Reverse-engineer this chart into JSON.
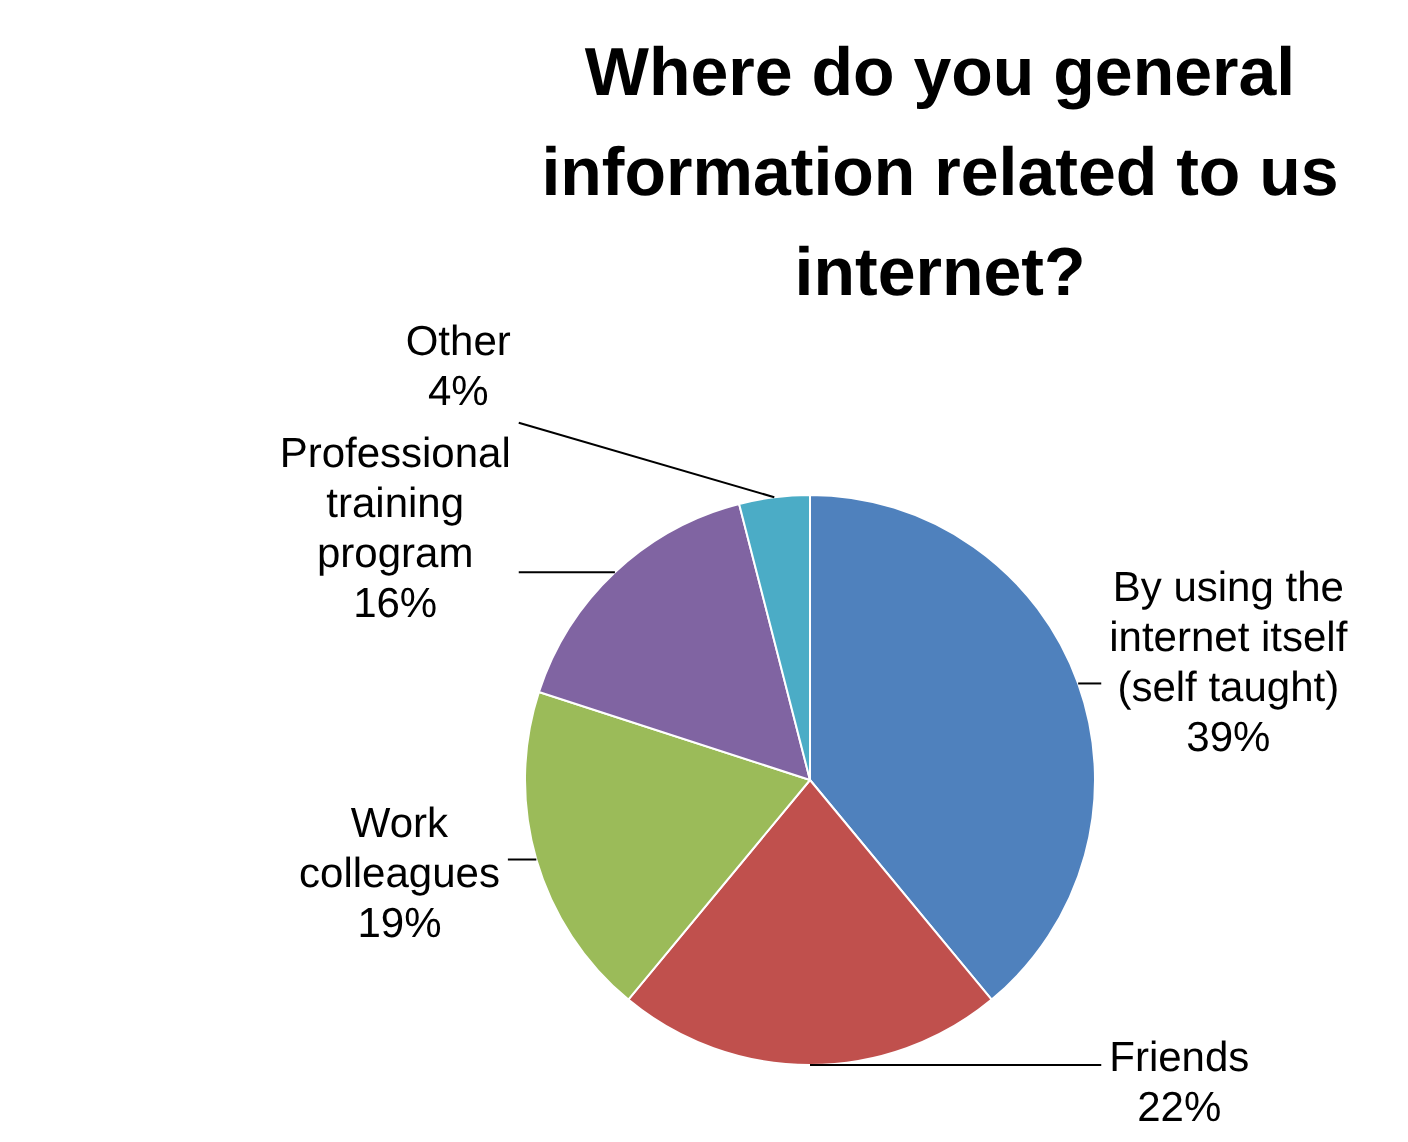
{
  "chart_data": {
    "type": "pie",
    "title": "Where do you general\ninformation related to us\ninternet?",
    "categories": [
      "By using the internet itself (self taught)",
      "Friends",
      "Work colleagues",
      "Professional training program",
      "Other"
    ],
    "values": [
      39,
      22,
      19,
      16,
      4
    ],
    "colors": [
      "#4f81bd",
      "#c0504d",
      "#9bbb59",
      "#8064a2",
      "#4bacc6"
    ],
    "value_labels": [
      "39%",
      "22%",
      "19%",
      "16%",
      "4%"
    ],
    "legend": false
  }
}
